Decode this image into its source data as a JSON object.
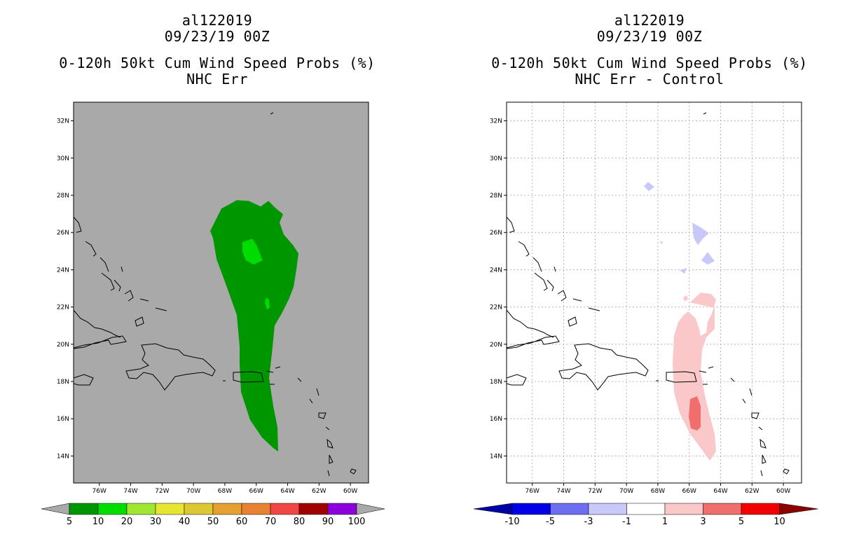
{
  "left_panel": {
    "storm": "al122019",
    "date": "09/23/19 00Z",
    "product": "0-120h 50kt Cum Wind Speed Probs (%)",
    "subtitle": "NHC Err",
    "background_color": "#a9a9a9",
    "colorbar": {
      "labels": [
        "5",
        "10",
        "20",
        "30",
        "40",
        "50",
        "60",
        "70",
        "80",
        "90",
        "100"
      ],
      "colors": [
        "#009600",
        "#00dc00",
        "#a0e632",
        "#e6e632",
        "#dcc832",
        "#e6a032",
        "#e68232",
        "#f04646",
        "#a00000",
        "#8c00dc"
      ],
      "end_colors": [
        "#a9a9a9",
        "#a9a9a9"
      ]
    }
  },
  "right_panel": {
    "storm": "al122019",
    "date": "09/23/19 00Z",
    "product": "0-120h 50kt Cum Wind Speed Probs (%)",
    "subtitle": "NHC Err - Control",
    "background_color": "#ffffff",
    "colorbar": {
      "labels": [
        "-10",
        "-5",
        "-3",
        "-1",
        "1",
        "3",
        "5",
        "10"
      ],
      "colors": [
        "#0000e6",
        "#6e6ef0",
        "#c8c8fa",
        "#ffffff",
        "#fac8c8",
        "#f06e6e",
        "#f00000"
      ],
      "end_colors": [
        "#0000a0",
        "#8c0000"
      ]
    }
  },
  "map": {
    "lat_labels": [
      "32N",
      "30N",
      "28N",
      "26N",
      "24N",
      "22N",
      "20N",
      "18N",
      "16N",
      "14N"
    ],
    "lat_values": [
      32,
      30,
      28,
      26,
      24,
      22,
      20,
      18,
      16,
      14
    ],
    "lon_labels": [
      "76W",
      "74W",
      "72W",
      "70W",
      "68W",
      "66W",
      "64W",
      "62W",
      "60W"
    ],
    "lon_values": [
      -76,
      -74,
      -72,
      -70,
      -68,
      -66,
      -64,
      -62,
      -60
    ]
  }
}
